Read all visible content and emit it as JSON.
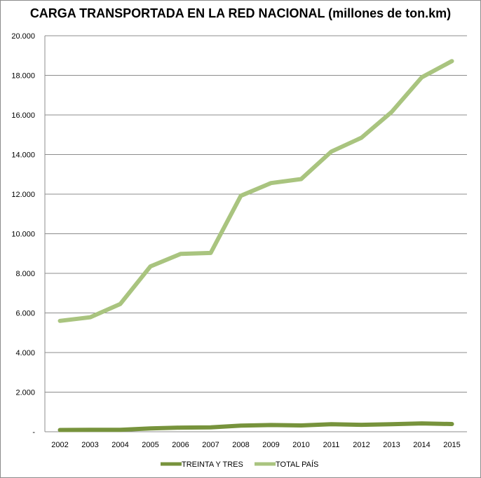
{
  "chart_data": {
    "type": "line",
    "title": "CARGA TRANSPORTADA EN LA RED NACIONAL (millones de ton.km)",
    "xlabel": "",
    "ylabel": "",
    "categories": [
      "2002",
      "2003",
      "2004",
      "2005",
      "2006",
      "2007",
      "2008",
      "2009",
      "2010",
      "2011",
      "2012",
      "2013",
      "2014",
      "2015"
    ],
    "ylim": [
      0,
      20000
    ],
    "yticks": [
      0,
      2000,
      4000,
      6000,
      8000,
      10000,
      12000,
      14000,
      16000,
      18000,
      20000
    ],
    "ytick_labels": [
      "-",
      "2.000",
      "4.000",
      "6.000",
      "8.000",
      "10.000",
      "12.000",
      "14.000",
      "16.000",
      "18.000",
      "20.000"
    ],
    "grid": "horizontal",
    "legend_position": "bottom",
    "series": [
      {
        "name": "TREINTA Y TRES",
        "color": "#77933c",
        "values": [
          90,
          95,
          100,
          170,
          210,
          220,
          310,
          340,
          320,
          380,
          350,
          380,
          420,
          390
        ]
      },
      {
        "name": "TOTAL PAÍS",
        "color": "#a9c47f",
        "values": [
          5600,
          5780,
          6450,
          8350,
          8980,
          9030,
          11920,
          12560,
          12760,
          14150,
          14850,
          16150,
          17900,
          18720
        ]
      }
    ]
  }
}
